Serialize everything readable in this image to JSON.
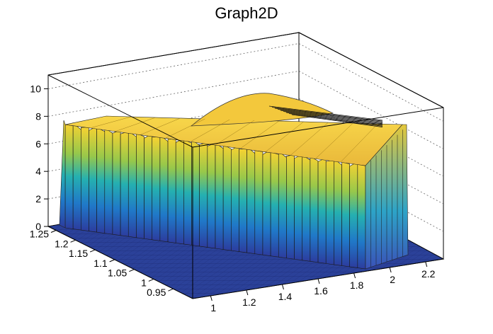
{
  "chart_data": {
    "type": "surface3d",
    "title": "Graph2D",
    "palette": "viridis-like",
    "colors": {
      "low": "#2a3fa0",
      "mid": "#22a6c8",
      "high": "#f5d232",
      "frame": "#000000",
      "grid": "#666666"
    },
    "x_axis": {
      "range": [
        0.9,
        2.3
      ],
      "ticks": [
        "1",
        "1.2",
        "1.4",
        "1.6",
        "1.8",
        "2",
        "2.2"
      ]
    },
    "y_axis": {
      "range": [
        0.9,
        1.27
      ],
      "ticks": [
        "0.95",
        "1",
        "1.05",
        "1.1",
        "1.15",
        "1.2",
        "1.25"
      ]
    },
    "z_axis": {
      "range": [
        0,
        11
      ],
      "ticks": [
        "0",
        "2",
        "4",
        "6",
        "8",
        "10"
      ]
    },
    "grid": true,
    "surface_note_values": {
      "plateau_height": 7.5,
      "peak_height": 9.5,
      "plateau_x_range": [
        0.95,
        2.05
      ],
      "plateau_y_range": [
        0.93,
        1.25
      ]
    }
  }
}
